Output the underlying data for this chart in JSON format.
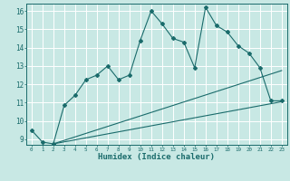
{
  "xlabel": "Humidex (Indice chaleur)",
  "ylabel": "",
  "bg_color": "#c8e8e4",
  "grid_color": "#ffffff",
  "line_color": "#1a6b6b",
  "xlim": [
    -0.5,
    23.5
  ],
  "ylim": [
    8.7,
    16.4
  ],
  "xticks": [
    0,
    1,
    2,
    3,
    4,
    5,
    6,
    7,
    8,
    9,
    10,
    11,
    12,
    13,
    14,
    15,
    16,
    17,
    18,
    19,
    20,
    21,
    22,
    23
  ],
  "yticks": [
    9,
    10,
    11,
    12,
    13,
    14,
    15,
    16
  ],
  "line1_x": [
    0,
    1,
    2,
    3,
    4,
    5,
    6,
    7,
    8,
    9,
    10,
    11,
    12,
    13,
    14,
    15,
    16,
    17,
    18,
    19,
    20,
    21,
    22,
    23
  ],
  "line1_y": [
    9.5,
    8.85,
    8.75,
    10.85,
    11.4,
    12.25,
    12.5,
    13.0,
    12.25,
    12.5,
    14.4,
    16.0,
    15.3,
    14.5,
    14.3,
    12.9,
    16.2,
    15.2,
    14.85,
    14.1,
    13.7,
    12.9,
    11.1,
    11.1
  ],
  "line2_start_x": 2,
  "line2_start_y": 8.75,
  "line2_end_x": 23,
  "line2_end_y": 11.05,
  "line3_start_x": 2,
  "line3_start_y": 8.75,
  "line3_end_x": 23,
  "line3_end_y": 12.75
}
